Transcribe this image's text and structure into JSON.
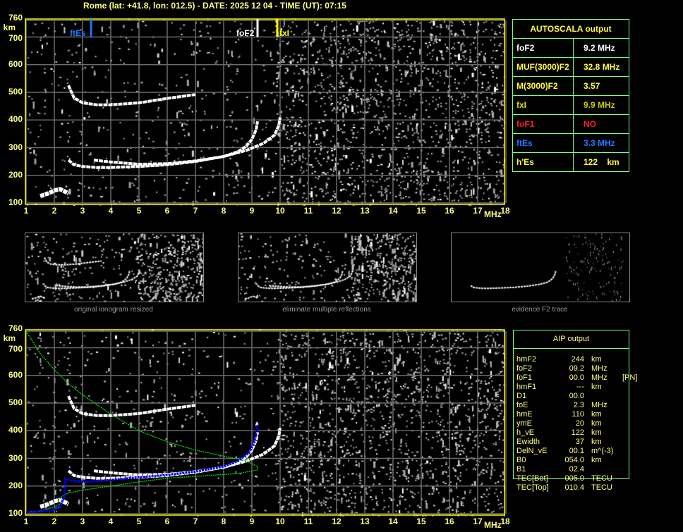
{
  "header": {
    "title": "Rome (lat: +41.8, lon: 012.5) - DATE: 2025 12 04 - TIME (UT): 07:15"
  },
  "colors": {
    "axis": "#ffff00",
    "grid": "#6a6a6a",
    "text": "#ffff80",
    "box_border": "#80ff80",
    "ftEs": "#1e78ff",
    "foF2": "#ffffff",
    "fxI": "#ffff00",
    "foF1": "#ff2020",
    "profile": "#00e000",
    "fit": "#0000ff"
  },
  "axes": {
    "y_unit": "km",
    "x_unit": "MHz",
    "y_ticks": [
      760,
      700,
      600,
      500,
      400,
      300,
      200,
      100
    ],
    "x_ticks": [
      1,
      2,
      3,
      4,
      5,
      6,
      7,
      8,
      9,
      10,
      11,
      12,
      13,
      14,
      15,
      16,
      17,
      18
    ]
  },
  "markers": [
    {
      "label": "ftEs",
      "freq": 3.3,
      "color": "#1e78ff"
    },
    {
      "label": "foF2",
      "freq": 9.2,
      "color": "#ffffff"
    },
    {
      "label": "fxI",
      "freq": 9.9,
      "color": "#ffff00"
    }
  ],
  "chart_data": {
    "type": "scatter",
    "xlim": [
      1,
      18
    ],
    "ylim": [
      100,
      760
    ],
    "xlabel": "MHz",
    "ylabel": "km",
    "grid": true,
    "traces": {
      "es": [
        [
          1.5,
          125
        ],
        [
          1.8,
          135
        ],
        [
          2.0,
          145
        ],
        [
          2.2,
          150
        ],
        [
          2.4,
          140
        ],
        [
          2.5,
          135
        ]
      ],
      "f2_o": [
        [
          2.5,
          255
        ],
        [
          2.7,
          238
        ],
        [
          3,
          232
        ],
        [
          3.5,
          228
        ],
        [
          4,
          228
        ],
        [
          5,
          232
        ],
        [
          6,
          238
        ],
        [
          7,
          250
        ],
        [
          8,
          268
        ],
        [
          8.5,
          285
        ],
        [
          8.8,
          305
        ],
        [
          9.0,
          330
        ],
        [
          9.15,
          365
        ],
        [
          9.2,
          395
        ]
      ],
      "f2_x": [
        [
          3.4,
          255
        ],
        [
          4,
          248
        ],
        [
          5,
          240
        ],
        [
          6,
          242
        ],
        [
          7,
          252
        ],
        [
          8,
          268
        ],
        [
          8.8,
          290
        ],
        [
          9.4,
          315
        ],
        [
          9.8,
          345
        ],
        [
          9.95,
          380
        ],
        [
          10.0,
          410
        ]
      ],
      "f2_2hop": [
        [
          2.5,
          525
        ],
        [
          2.7,
          480
        ],
        [
          3,
          462
        ],
        [
          3.5,
          455
        ],
        [
          4,
          455
        ],
        [
          5,
          462
        ],
        [
          6,
          478
        ],
        [
          7,
          492
        ]
      ]
    },
    "profile": [
      [
        1,
        760
      ],
      [
        1.5,
        680
      ],
      [
        2,
        620
      ],
      [
        2.5,
        570
      ],
      [
        3,
        530
      ],
      [
        4,
        460
      ],
      [
        5,
        400
      ],
      [
        6,
        360
      ],
      [
        7,
        330
      ],
      [
        8,
        308
      ],
      [
        8.8,
        292
      ],
      [
        9.2,
        270
      ],
      [
        9.2,
        258
      ],
      [
        8.5,
        245
      ],
      [
        7,
        235
      ],
      [
        6,
        228
      ],
      [
        5,
        215
      ],
      [
        4,
        200
      ],
      [
        3,
        185
      ],
      [
        2.5,
        175
      ],
      [
        2.3,
        165
      ],
      [
        2.2,
        155
      ],
      [
        2.3,
        140
      ],
      [
        2.0,
        125
      ],
      [
        1.5,
        110
      ],
      [
        1,
        105
      ]
    ],
    "fit": [
      [
        1,
        105
      ],
      [
        1.5,
        108
      ],
      [
        2,
        115
      ],
      [
        2.2,
        125
      ],
      [
        2.35,
        160
      ],
      [
        2.4,
        225
      ],
      [
        2.6,
        220
      ],
      [
        3,
        215
      ],
      [
        4,
        222
      ],
      [
        5,
        232
      ],
      [
        6,
        240
      ],
      [
        7,
        252
      ],
      [
        8,
        270
      ],
      [
        8.5,
        290
      ],
      [
        8.9,
        320
      ],
      [
        9.1,
        360
      ],
      [
        9.2,
        420
      ]
    ]
  },
  "thumbnails": [
    {
      "label": "original ionogram resized"
    },
    {
      "label": "eliminate multiple reflections"
    },
    {
      "label": "evidence F2 trace"
    }
  ],
  "autoscala": {
    "title": "AUTOSCALA output",
    "rows": [
      {
        "key": "foF2",
        "value": "9.2 MHz",
        "key_color": "#ffffff",
        "value_color": "#ffffff"
      },
      {
        "key": "MUF(3000)F2",
        "value": "32.8 MHz",
        "key_color": "#ffff40",
        "value_color": "#ffff40"
      },
      {
        "key": "M(3000)F2",
        "value": "3.57",
        "key_color": "#ffff40",
        "value_color": "#ffff40"
      },
      {
        "key": "fxI",
        "value": "9.9 MHz",
        "key_color": "#e0e000",
        "value_color": "#c8c800"
      },
      {
        "key": "foF1",
        "value": "NO",
        "key_color": "#ff2020",
        "value_color": "#ff2020"
      },
      {
        "key": "ftEs",
        "value": "3.3 MHz",
        "key_color": "#1e78ff",
        "value_color": "#1e78ff"
      },
      {
        "key": "h'Es",
        "value": "122    km",
        "key_color": "#ffff40",
        "value_color": "#ffff40"
      }
    ]
  },
  "aip": {
    "title": "AIP output",
    "rows": [
      {
        "k": "hmF2",
        "v": "244",
        "u": "km",
        "x": ""
      },
      {
        "k": "foF2",
        "v": "09.2",
        "u": "MHz",
        "x": ""
      },
      {
        "k": "foF1",
        "v": "00.0",
        "u": "MHz",
        "x": "[PN]"
      },
      {
        "k": "hmF1",
        "v": "---",
        "u": "km",
        "x": ""
      },
      {
        "k": "D1",
        "v": "00.0",
        "u": "",
        "x": ""
      },
      {
        "k": "foE",
        "v": "2.3",
        "u": "MHz",
        "x": ""
      },
      {
        "k": "hmE",
        "v": "110",
        "u": "km",
        "x": ""
      },
      {
        "k": "ymE",
        "v": "20",
        "u": "km",
        "x": ""
      },
      {
        "k": "h_vE",
        "v": "122",
        "u": "km",
        "x": ""
      },
      {
        "k": "Ewidth",
        "v": "37",
        "u": "km",
        "x": ""
      },
      {
        "k": "DelN_vE",
        "v": "00.1",
        "u": "m^(-3)",
        "x": ""
      },
      {
        "k": "B0",
        "v": "054.0",
        "u": "km",
        "x": ""
      },
      {
        "k": "B1",
        "v": "02.4",
        "u": "",
        "x": ""
      },
      {
        "k": "TEC[Bot]",
        "v": "005.0",
        "u": "TECU",
        "x": ""
      },
      {
        "k": "TEC[Top]",
        "v": "010.4",
        "u": "TECU",
        "x": ""
      }
    ]
  }
}
